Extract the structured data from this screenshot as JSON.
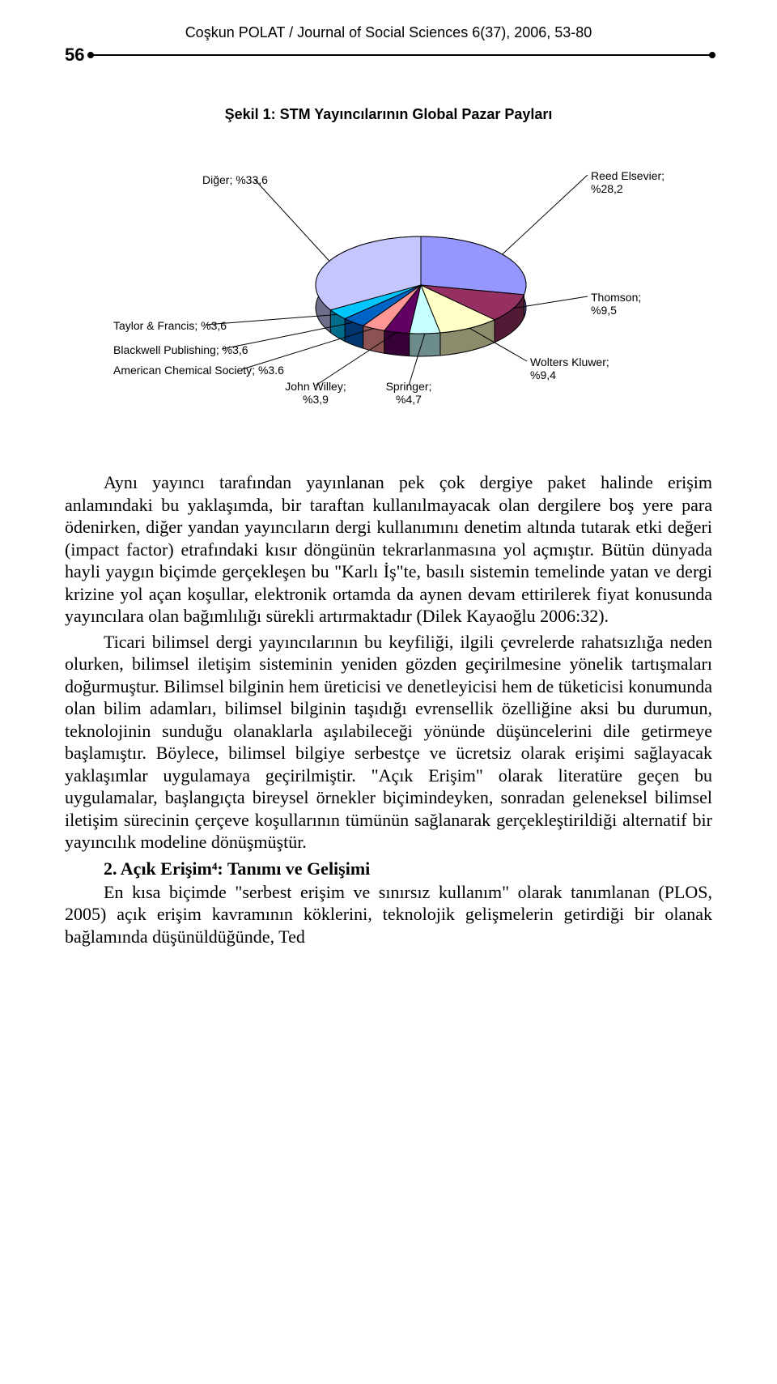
{
  "header": {
    "running_head": "Coşkun POLAT / Journal of Social Sciences 6(37), 2006, 53-80",
    "page_number": "56"
  },
  "chart": {
    "type": "pie-3d",
    "title": "Şekil 1: STM Yayıncılarının Global Pazar Payları",
    "background_color": "#ffffff",
    "pie_border_color": "#000000",
    "label_font_family": "Arial",
    "label_font_size": 14,
    "leader_color": "#000000",
    "slices": [
      {
        "label": "Reed Elsevier; %28,2",
        "value": 28.2,
        "color": "#9696ff"
      },
      {
        "label": "Thomson; %9,5",
        "value": 9.5,
        "color": "#963063"
      },
      {
        "label": "Wolters Kluwer; %9,4",
        "value": 9.4,
        "color": "#ffffc6"
      },
      {
        "label": "Springer; %4,7",
        "value": 4.7,
        "color": "#c6ffff"
      },
      {
        "label": "John Willey; %3,9",
        "value": 3.9,
        "color": "#630063"
      },
      {
        "label": "American Chemical Society; %3.6",
        "value": 3.6,
        "color": "#ff9696"
      },
      {
        "label": "Blackwell Publishing; %3,6",
        "value": 3.6,
        "color": "#0063c6"
      },
      {
        "label": "Taylor & Francis; %3,6",
        "value": 3.6,
        "color": "#00c6ff"
      },
      {
        "label": "Diğer; %33,6",
        "value": 33.6,
        "color": "#c6c6ff"
      }
    ]
  },
  "paragraphs": {
    "p1": "Aynı yayıncı tarafından yayınlanan pek çok dergiye paket halinde erişim anlamındaki bu yaklaşımda, bir taraftan kullanılmayacak olan dergilere boş yere para ödenirken, diğer yandan yayıncıların dergi kullanımını denetim altında tutarak etki değeri (impact factor) etrafındaki kısır döngünün tekrarlanmasına yol açmıştır. Bütün dünyada hayli yaygın biçimde gerçekleşen bu \"Karlı İş\"te, basılı sistemin temelinde yatan ve dergi krizine yol açan koşullar, elektronik ortamda da aynen devam ettirilerek fiyat konusunda yayıncılara olan bağımlılığı sürekli artırmaktadır (Dilek Kayaoğlu 2006:32).",
    "p2": "Ticari bilimsel dergi yayıncılarının bu keyfiliği, ilgili çevrelerde rahatsızlığa neden olurken, bilimsel iletişim sisteminin yeniden gözden geçirilmesine yönelik tartışmaları doğurmuştur. Bilimsel bilginin hem üreticisi ve denetleyicisi hem de tüketicisi konumunda olan bilim adamları, bilimsel bilginin taşıdığı evrensellik özelliğine aksi bu durumun, teknolojinin sunduğu olanaklarla aşılabileceği yönünde düşüncelerini dile getirmeye başlamıştır. Böylece, bilimsel bilgiye serbestçe ve ücretsiz olarak erişimi sağlayacak yaklaşımlar uygulamaya geçirilmiştir. \"Açık Erişim\" olarak literatüre geçen bu uygulamalar, başlangıçta bireysel örnekler biçimindeyken, sonradan geleneksel bilimsel iletişim sürecinin çerçeve koşullarının tümünün sağlanarak gerçekleştirildiği alternatif bir yayıncılık modeline dönüşmüştür.",
    "heading": "2. Açık Erişim⁴: Tanımı ve Gelişimi",
    "p3": "En kısa biçimde \"serbest erişim ve sınırsız kullanım\" olarak tanımlanan (PLOS, 2005) açık erişim kavramının köklerini, teknolojik gelişmelerin getirdiği bir olanak bağlamında düşünüldüğünde, Ted"
  }
}
